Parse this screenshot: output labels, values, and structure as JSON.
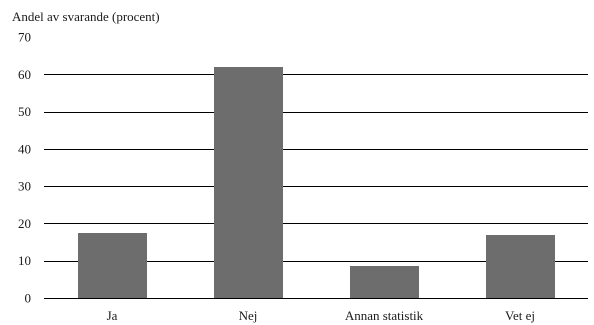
{
  "chart_data": {
    "type": "bar",
    "ylabel": "Andel av svarande (procent)",
    "categories": [
      "Ja",
      "Nej",
      "Annan statistik",
      "Vet ej"
    ],
    "values": [
      17.5,
      62,
      8.5,
      17
    ],
    "ylim": [
      0,
      70
    ],
    "yticks": [
      0,
      10,
      20,
      30,
      40,
      50,
      60,
      70
    ],
    "grid": true,
    "bar_color": "#6d6d6d"
  }
}
